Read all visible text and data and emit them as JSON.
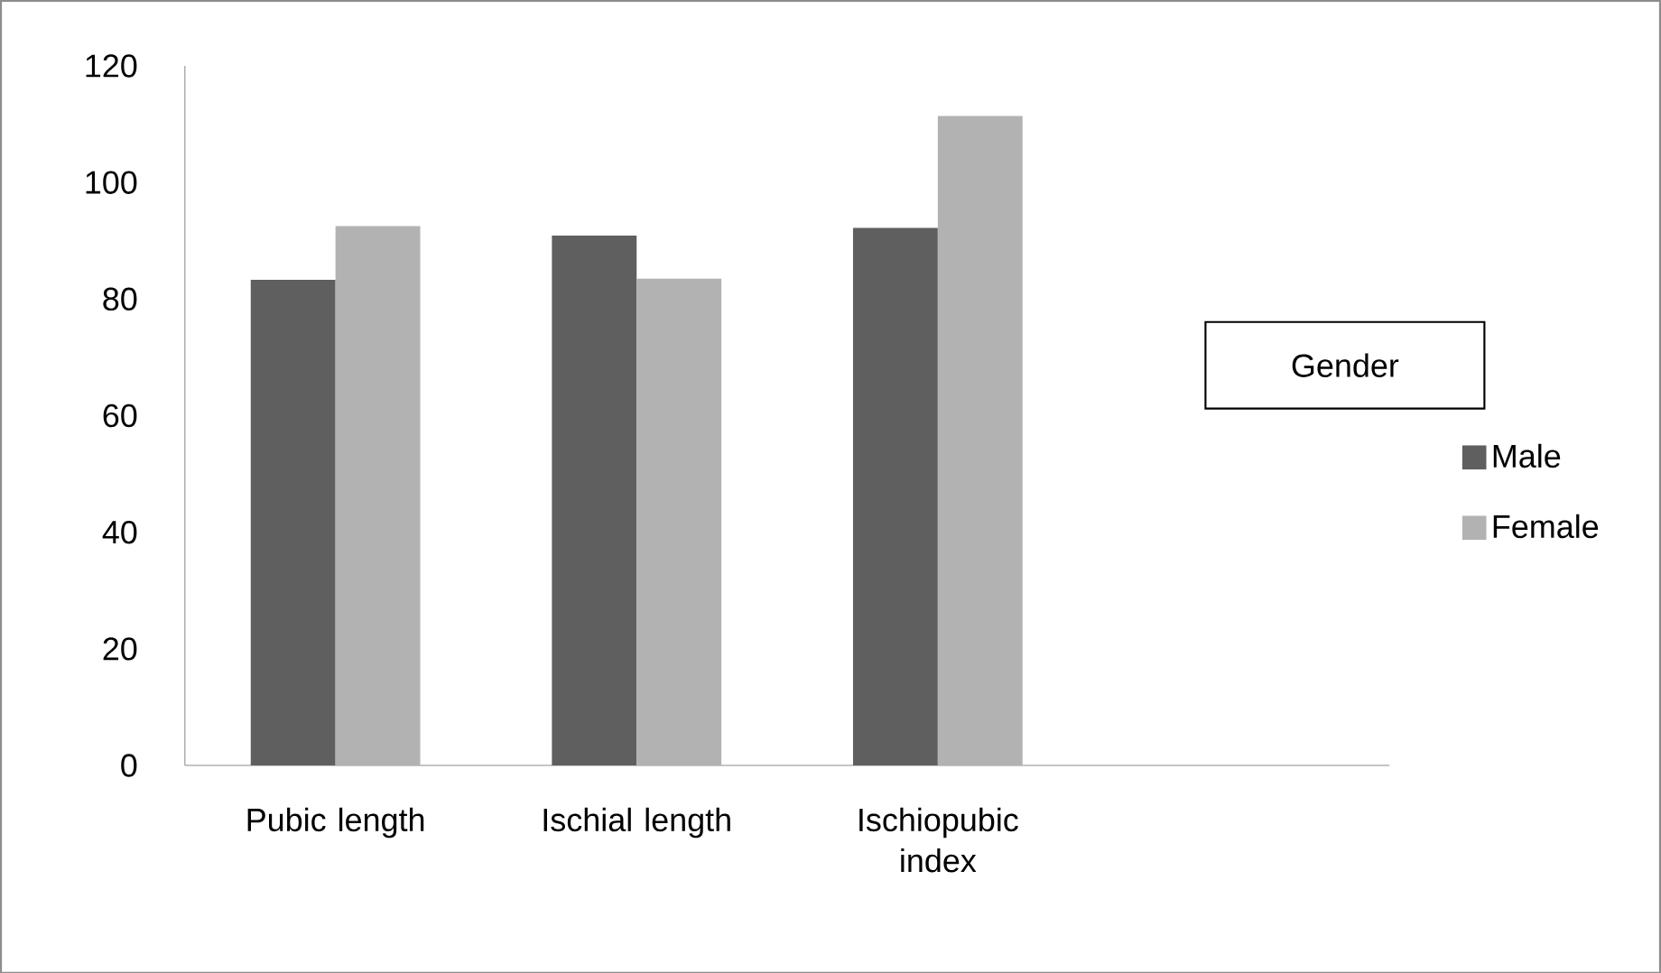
{
  "chart_data": {
    "type": "bar",
    "categories": [
      "Pubic length",
      "Ischial length",
      "Ischiopubic index"
    ],
    "series": [
      {
        "name": "Male",
        "color": "#5f5f5f",
        "values": [
          83.3,
          90.9,
          92.2
        ]
      },
      {
        "name": "Female",
        "color": "#b2b2b2",
        "values": [
          92.5,
          83.5,
          111.4
        ]
      }
    ],
    "ylim": [
      0,
      120
    ],
    "yticks": [
      0,
      20,
      40,
      60,
      80,
      100,
      120
    ],
    "legend_title": "Gender",
    "legend": "right",
    "grid": false
  }
}
